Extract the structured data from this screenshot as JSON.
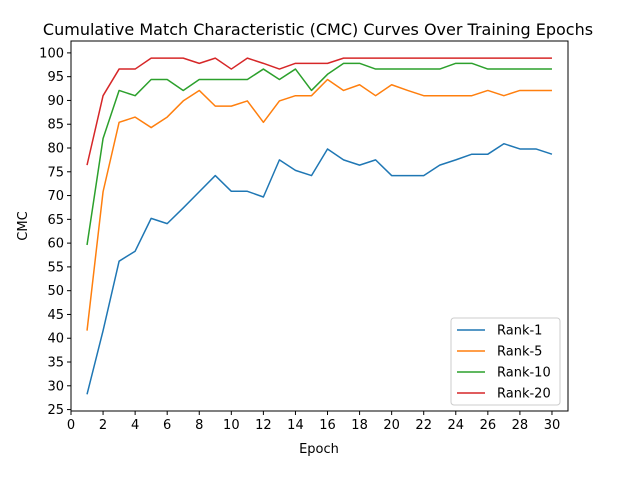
{
  "chart_data": {
    "type": "line",
    "title": "Cumulative Match Characteristic (CMC) Curves Over Training Epochs",
    "xlabel": "Epoch",
    "ylabel": "CMC",
    "xlim": [
      0,
      31
    ],
    "ylim": [
      24.7,
      102.5
    ],
    "xticks": [
      0,
      2,
      4,
      6,
      8,
      10,
      12,
      14,
      16,
      18,
      20,
      22,
      24,
      26,
      28,
      30
    ],
    "yticks": [
      25,
      30,
      35,
      40,
      45,
      50,
      55,
      60,
      65,
      70,
      75,
      80,
      85,
      90,
      95,
      100
    ],
    "grid": false,
    "legend_position": "lower-right",
    "x": [
      1,
      2,
      3,
      4,
      5,
      6,
      7,
      8,
      9,
      10,
      11,
      12,
      13,
      14,
      15,
      16,
      17,
      18,
      19,
      20,
      21,
      22,
      23,
      24,
      25,
      26,
      27,
      28,
      29,
      30
    ],
    "series": [
      {
        "name": "Rank-1",
        "color": "#1f77b4",
        "values": [
          28.2,
          41.6,
          56.2,
          58.3,
          65.2,
          64.1,
          67.4,
          70.8,
          74.2,
          70.9,
          70.9,
          69.7,
          77.5,
          75.3,
          74.2,
          79.8,
          77.5,
          76.4,
          77.5,
          74.2,
          74.2,
          74.2,
          76.4,
          77.5,
          78.7,
          78.7,
          80.9,
          79.8,
          79.8,
          78.7
        ]
      },
      {
        "name": "Rank-5",
        "color": "#ff7f0e",
        "values": [
          41.6,
          70.8,
          85.4,
          86.5,
          84.3,
          86.5,
          89.9,
          92.1,
          88.8,
          88.8,
          89.9,
          85.4,
          89.9,
          91.0,
          91.0,
          94.4,
          92.1,
          93.3,
          91.0,
          93.3,
          92.1,
          91.0,
          91.0,
          91.0,
          91.0,
          92.1,
          91.0,
          92.1,
          92.1,
          92.1
        ]
      },
      {
        "name": "Rank-10",
        "color": "#2ca02c",
        "values": [
          59.6,
          82.0,
          92.1,
          91.0,
          94.4,
          94.4,
          92.1,
          94.4,
          94.4,
          94.4,
          94.4,
          96.6,
          94.4,
          96.6,
          92.1,
          95.5,
          97.8,
          97.8,
          96.6,
          96.6,
          96.6,
          96.6,
          96.6,
          97.8,
          97.8,
          96.6,
          96.6,
          96.6,
          96.6,
          96.6
        ]
      },
      {
        "name": "Rank-20",
        "color": "#d62728",
        "values": [
          76.4,
          91.0,
          96.6,
          96.6,
          98.9,
          98.9,
          98.9,
          97.8,
          98.9,
          96.6,
          98.9,
          97.8,
          96.6,
          97.8,
          97.8,
          97.8,
          98.9,
          98.9,
          98.9,
          98.9,
          98.9,
          98.9,
          98.9,
          98.9,
          98.9,
          98.9,
          98.9,
          98.9,
          98.9,
          98.9
        ]
      }
    ]
  }
}
